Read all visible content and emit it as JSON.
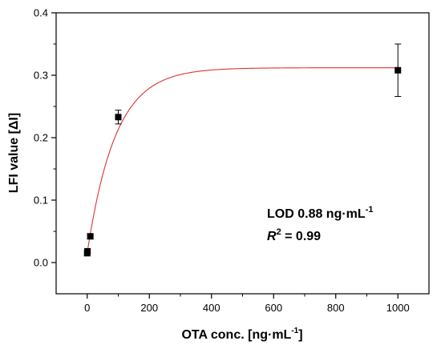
{
  "chart_data": {
    "type": "scatter",
    "xlabel": "OTA conc. [ng·mL",
    "xlabel_sup": "-1",
    "xlabel_suffix": "]",
    "ylabel": "LFI value [ΔI]",
    "xlim": [
      -100,
      1100
    ],
    "ylim": [
      -0.05,
      0.4
    ],
    "x_ticks": [
      0,
      200,
      400,
      600,
      800,
      1000
    ],
    "y_ticks": [
      0.0,
      0.1,
      0.2,
      0.3,
      0.4
    ],
    "y_tick_labels": [
      "0.0",
      "0.1",
      "0.2",
      "0.3",
      "0.4"
    ],
    "grid": false,
    "series": [
      {
        "x": [
          0,
          1,
          10,
          100,
          1000
        ],
        "y": [
          0.015,
          0.018,
          0.042,
          0.233,
          0.308
        ],
        "error": [
          0.004,
          0.004,
          0.004,
          0.011,
          0.042
        ],
        "marker": "square",
        "color": "#000000"
      }
    ],
    "fit": {
      "color": "#dd3333",
      "y0": 0.015,
      "ymax": 0.312,
      "k": 0.011
    },
    "annotations": {
      "lod_prefix": "LOD 0.88 ng·mL",
      "lod_sup": "-1",
      "r2_symbol": "R",
      "r2_sup": "2",
      "r2_value": " = 0.99"
    }
  }
}
